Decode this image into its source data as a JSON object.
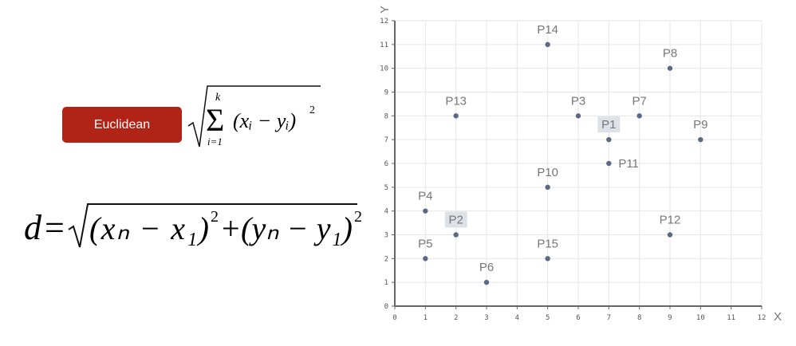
{
  "button": {
    "label": "Euclidean"
  },
  "formula_sum": {
    "upper": "k",
    "lower": "i=1",
    "body": "(xᵢ − yᵢ)",
    "power": "2"
  },
  "formula_distance": {
    "lhs": "d",
    "eq": "=",
    "term1": "(xₙ − x₁)",
    "term2": "(yₙ − y₁)",
    "power": "2",
    "plus": "+"
  },
  "chart_data": {
    "type": "scatter",
    "xlabel": "X",
    "ylabel": "Y",
    "xlim": [
      0,
      12
    ],
    "ylim": [
      0,
      12
    ],
    "xticks": [
      0,
      1,
      2,
      3,
      4,
      5,
      6,
      7,
      8,
      9,
      10,
      11,
      12
    ],
    "yticks": [
      0,
      1,
      2,
      3,
      4,
      5,
      6,
      7,
      8,
      9,
      10,
      11,
      12
    ],
    "grid": true,
    "point_color": "#5a6a86",
    "highlight_color": "#dde1e8",
    "points": [
      {
        "label": "P1",
        "x": 7,
        "y": 7,
        "highlight": true
      },
      {
        "label": "P2",
        "x": 2,
        "y": 3,
        "highlight": true
      },
      {
        "label": "P3",
        "x": 6,
        "y": 8
      },
      {
        "label": "P4",
        "x": 1,
        "y": 4
      },
      {
        "label": "P5",
        "x": 1,
        "y": 2
      },
      {
        "label": "P6",
        "x": 3,
        "y": 1
      },
      {
        "label": "P7",
        "x": 8,
        "y": 8
      },
      {
        "label": "P8",
        "x": 9,
        "y": 10
      },
      {
        "label": "P9",
        "x": 10,
        "y": 7
      },
      {
        "label": "P10",
        "x": 5,
        "y": 5
      },
      {
        "label": "P11",
        "x": 7,
        "y": 6,
        "label_side": "right"
      },
      {
        "label": "P12",
        "x": 9,
        "y": 3
      },
      {
        "label": "P13",
        "x": 2,
        "y": 8
      },
      {
        "label": "P14",
        "x": 5,
        "y": 11
      },
      {
        "label": "P15",
        "x": 5,
        "y": 2
      }
    ]
  }
}
